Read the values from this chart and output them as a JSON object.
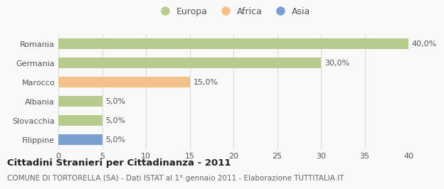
{
  "categories": [
    "Romania",
    "Germania",
    "Marocco",
    "Albania",
    "Slovacchia",
    "Filippine"
  ],
  "values": [
    40.0,
    30.0,
    15.0,
    5.0,
    5.0,
    5.0
  ],
  "bar_colors": [
    "#b5cc8e",
    "#b5cc8e",
    "#f5c18a",
    "#b5cc8e",
    "#b5cc8e",
    "#7b9fcf"
  ],
  "value_labels": [
    "40,0%",
    "30,0%",
    "15,0%",
    "5,0%",
    "5,0%",
    "5,0%"
  ],
  "legend_labels": [
    "Europa",
    "Africa",
    "Asia"
  ],
  "legend_colors": [
    "#b5cc8e",
    "#f5c18a",
    "#7b9fcf"
  ],
  "title": "Cittadini Stranieri per Cittadinanza - 2011",
  "subtitle": "COMUNE DI TORTORELLA (SA) - Dati ISTAT al 1° gennaio 2011 - Elaborazione TUTTITALIA.IT",
  "xlim": [
    0,
    40
  ],
  "xticks": [
    0,
    5,
    10,
    15,
    20,
    25,
    30,
    35,
    40
  ],
  "background_color": "#f9f9f9",
  "grid_color": "#dddddd",
  "bar_height": 0.55,
  "title_fontsize": 9.5,
  "subtitle_fontsize": 7.5,
  "tick_fontsize": 8,
  "label_fontsize": 8,
  "legend_fontsize": 9
}
